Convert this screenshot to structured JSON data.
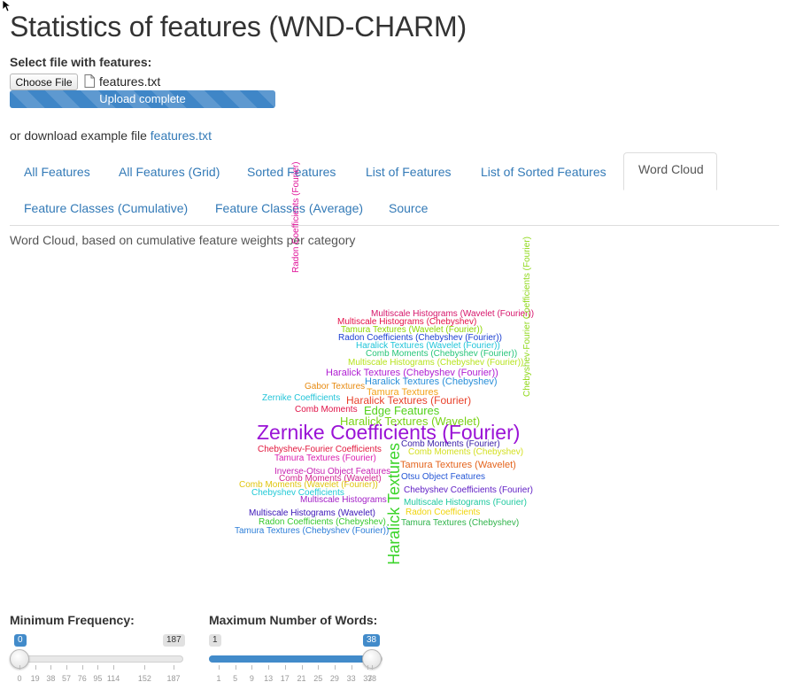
{
  "page": {
    "title": "Statistics of features (WND-CHARM)"
  },
  "upload": {
    "label": "Select file with features:",
    "button": "Choose File",
    "filename": "features.txt",
    "progress_text": "Upload complete",
    "progress_value": 1.0
  },
  "download": {
    "prefix": "or download example file",
    "link": "features.txt"
  },
  "tabs": [
    {
      "label": "All Features"
    },
    {
      "label": "All Features (Grid)"
    },
    {
      "label": "Sorted Features"
    },
    {
      "label": "List of Features"
    },
    {
      "label": "List of Sorted Features"
    },
    {
      "label": "Word Cloud",
      "active": true
    },
    {
      "label": "Feature Classes (Cumulative)"
    },
    {
      "label": "Feature Classes (Average)"
    },
    {
      "label": "Source"
    }
  ],
  "subtitle": "Word Cloud, based on cumulative feature weights per category",
  "wordcloud": {
    "words": [
      {
        "text": "Radon Coefficients (Fourier)",
        "color": "#e0139a"
      },
      {
        "text": "Multiscale Histograms (Wavelet (Fourier))",
        "color": "#d6166b"
      },
      {
        "text": "Multiscale Histograms (Chebyshev)",
        "color": "#e5114a"
      },
      {
        "text": "Tamura Textures (Wavelet (Fourier))",
        "color": "#8fd600"
      },
      {
        "text": "Radon Coefficients (Chebyshev (Fourier))",
        "color": "#1b3fd1"
      },
      {
        "text": "Haralick Textures (Wavelet (Fourier))",
        "color": "#1ec4d9"
      },
      {
        "text": "Comb Moments (Chebyshev (Fourier))",
        "color": "#27c57a"
      },
      {
        "text": "Multiscale Histograms (Chebyshev (Fourier))",
        "color": "#b6e31b"
      },
      {
        "text": "Haralick Textures (Chebyshev (Fourier))",
        "color": "#b01fd2"
      },
      {
        "text": "Haralick Textures (Chebyshev)",
        "color": "#2a8fd9"
      },
      {
        "text": "Gabor Textures",
        "color": "#e78b12"
      },
      {
        "text": "Tamura Textures",
        "color": "#f2a21a"
      },
      {
        "text": "Zernike Coefficients",
        "color": "#22c4d8"
      },
      {
        "text": "Haralick Textures (Fourier)",
        "color": "#e8412b"
      },
      {
        "text": "Comb Moments",
        "color": "#e01448"
      },
      {
        "text": "Edge Features",
        "color": "#54d11b"
      },
      {
        "text": "Haralick Textures (Wavelet)",
        "color": "#79d216"
      },
      {
        "text": "Zernike Coefficients (Fourier)",
        "color": "#9a13d6"
      },
      {
        "text": "Comb Moments (Fourier)",
        "color": "#3a1fa8"
      },
      {
        "text": "Chebyshev-Fourier Coefficients",
        "color": "#e2173d"
      },
      {
        "text": "Comb Moments (Chebyshev)",
        "color": "#d4e021"
      },
      {
        "text": "Tamura Textures (Fourier)",
        "color": "#db1fb0"
      },
      {
        "text": "Tamura Textures (Wavelet)",
        "color": "#e4641d"
      },
      {
        "text": "Inverse-Otsu Object Features",
        "color": "#c71fb2"
      },
      {
        "text": "Comb Moments (Wavelet)",
        "color": "#d02591"
      },
      {
        "text": "Otsu Object Features",
        "color": "#2557d6"
      },
      {
        "text": "Comb Moments (Wavelet (Fourier))",
        "color": "#e0c50f"
      },
      {
        "text": "Chebyshev Coefficients (Fourier)",
        "color": "#5e1cc4"
      },
      {
        "text": "Chebyshev Coefficients",
        "color": "#20c9d6"
      },
      {
        "text": "Multiscale Histograms",
        "color": "#a31fc7"
      },
      {
        "text": "Multiscale Histograms (Fourier)",
        "color": "#1fc9a0"
      },
      {
        "text": "Haralick Textures",
        "color": "#3bd42a"
      },
      {
        "text": "Multiscale Histograms (Wavelet)",
        "color": "#3a16b7"
      },
      {
        "text": "Radon Coefficients",
        "color": "#f0d40c"
      },
      {
        "text": "Radon Coefficients (Chebyshev)",
        "color": "#36c92d"
      },
      {
        "text": "Tamura Textures (Chebyshev)",
        "color": "#2fb34a"
      },
      {
        "text": "Tamura Textures (Chebyshev (Fourier))",
        "color": "#2d7ed8"
      },
      {
        "text": "Chebyshev-Fourier Coefficients (Fourier)",
        "color": "#8fd81a"
      }
    ]
  },
  "sliders": {
    "min_frequency": {
      "label": "Minimum Frequency:",
      "min": 0,
      "max": 187,
      "value": 0,
      "min_label": "0",
      "max_label": "187",
      "value_label": "0",
      "ticks": [
        "0",
        "19",
        "38",
        "57",
        "76",
        "95",
        "114",
        "152",
        "187"
      ]
    },
    "max_words": {
      "label": "Maximum Number of Words:",
      "min": 1,
      "max": 38,
      "value": 38,
      "min_label": "1",
      "value_label": "38",
      "ticks": [
        "1",
        "5",
        "9",
        "13",
        "17",
        "21",
        "25",
        "29",
        "33",
        "37",
        "38"
      ]
    }
  },
  "colors": {
    "accent": "#337ab7",
    "progress": "#3f86c7",
    "slider": "#428bca"
  }
}
